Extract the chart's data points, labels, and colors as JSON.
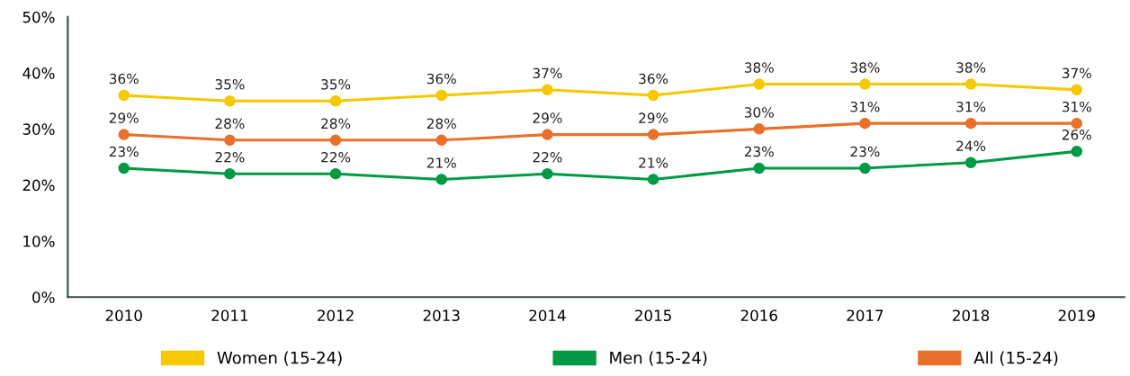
{
  "chart_data": {
    "type": "line",
    "categories": [
      "2010",
      "2011",
      "2012",
      "2013",
      "2014",
      "2015",
      "2016",
      "2017",
      "2018",
      "2019"
    ],
    "series": [
      {
        "name": "Women (15-24)",
        "color": "#f5c800",
        "values": [
          36,
          35,
          35,
          36,
          37,
          36,
          38,
          38,
          38,
          37
        ],
        "value_labels": [
          "36%",
          "35%",
          "35%",
          "36%",
          "37%",
          "36%",
          "38%",
          "38%",
          "38%",
          "37%"
        ]
      },
      {
        "name": "Men (15-24)",
        "color": "#009a44",
        "values": [
          23,
          22,
          22,
          21,
          22,
          21,
          23,
          23,
          24,
          26
        ],
        "value_labels": [
          "23%",
          "22%",
          "22%",
          "21%",
          "22%",
          "21%",
          "23%",
          "23%",
          "24%",
          "26%"
        ]
      },
      {
        "name": "All (15-24)",
        "color": "#e8702a",
        "values": [
          29,
          28,
          28,
          28,
          29,
          29,
          30,
          31,
          31,
          31
        ],
        "value_labels": [
          "29%",
          "28%",
          "28%",
          "28%",
          "29%",
          "29%",
          "30%",
          "31%",
          "31%",
          "31%"
        ]
      }
    ],
    "ylim": [
      0,
      50
    ],
    "yticks": [
      {
        "value": 0,
        "label": "0%"
      },
      {
        "value": 10,
        "label": "10%"
      },
      {
        "value": 20,
        "label": "20%"
      },
      {
        "value": 30,
        "label": "30%"
      },
      {
        "value": 40,
        "label": "40%"
      },
      {
        "value": 50,
        "label": "50%"
      }
    ],
    "grid": false,
    "legend": "bottom",
    "marker": "circle",
    "line_style": "solid"
  }
}
